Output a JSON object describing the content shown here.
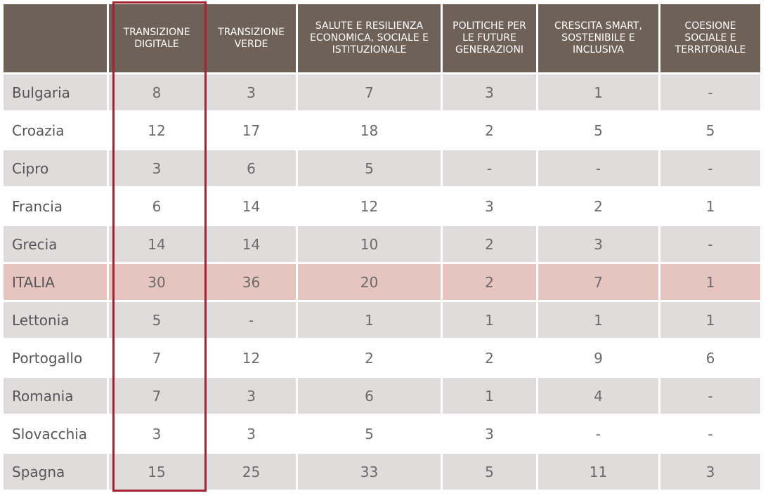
{
  "chart_data": {
    "type": "table",
    "columns": [
      "",
      "TRANSIZIONE DIGITALE",
      "TRANSIZIONE VERDE",
      "SALUTE E RESILIENZA ECONOMICA, SOCIALE E ISTITUZIONALE",
      "POLITICHE PER LE FUTURE GENERAZIONI",
      "CRESCITA SMART, SOSTENIBILE E INCLUSIVA",
      "COESIONE SOCIALE E TERRITORIALE"
    ],
    "rows": [
      {
        "country": "Bulgaria",
        "values": [
          "8",
          "3",
          "7",
          "3",
          "1",
          "-"
        ]
      },
      {
        "country": "Croazia",
        "values": [
          "12",
          "17",
          "18",
          "2",
          "5",
          "5"
        ]
      },
      {
        "country": "Cipro",
        "values": [
          "3",
          "6",
          "5",
          "-",
          "-",
          "-"
        ]
      },
      {
        "country": "Francia",
        "values": [
          "6",
          "14",
          "12",
          "3",
          "2",
          "1"
        ]
      },
      {
        "country": "Grecia",
        "values": [
          "14",
          "14",
          "10",
          "2",
          "3",
          "-"
        ]
      },
      {
        "country": "ITALIA",
        "values": [
          "30",
          "36",
          "20",
          "2",
          "7",
          "1"
        ],
        "highlight": true
      },
      {
        "country": "Lettonia",
        "values": [
          "5",
          "-",
          "1",
          "1",
          "1",
          "1"
        ]
      },
      {
        "country": "Portogallo",
        "values": [
          "7",
          "12",
          "2",
          "2",
          "9",
          "6"
        ]
      },
      {
        "country": "Romania",
        "values": [
          "7",
          "3",
          "6",
          "1",
          "4",
          "-"
        ]
      },
      {
        "country": "Slovacchia",
        "values": [
          "3",
          "3",
          "5",
          "3",
          "-",
          "-"
        ]
      },
      {
        "country": "Spagna",
        "values": [
          "15",
          "25",
          "33",
          "5",
          "11",
          "3"
        ]
      }
    ],
    "highlighted_column": "TRANSIZIONE DIGITALE",
    "highlighted_row": "ITALIA"
  },
  "colors": {
    "header_bg": "#6e6158",
    "row_band": "#e1dcdc",
    "highlight_row": "#e6c4bf",
    "highlight_border": "#a32332"
  }
}
